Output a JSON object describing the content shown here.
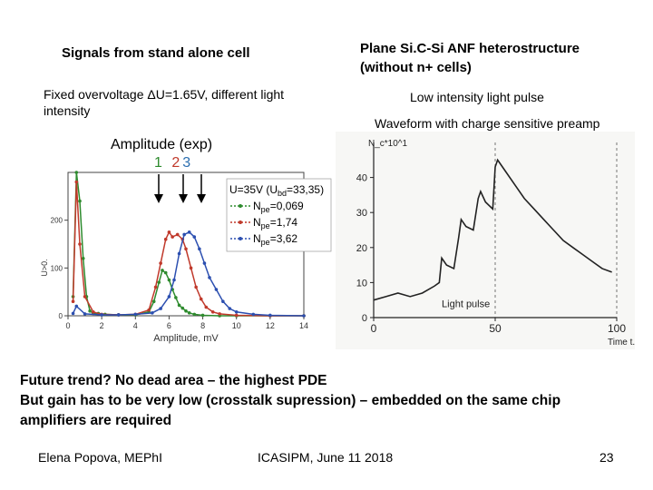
{
  "left": {
    "title": "Signals from stand alone cell",
    "condition_line1": "Fixed overvoltage ",
    "delta": "ΔU=1.65V",
    "condition_line1b": ", different light",
    "condition_line2": "intensity",
    "amplitude_label": "Amplitude (exp)",
    "markers": [
      "1",
      "2",
      "3"
    ],
    "marker_colors": [
      "#2e8b2e",
      "#c0392b",
      "#2c6fb0"
    ]
  },
  "right": {
    "title_line1": "Plane Si.C-Si ANF heterostructure",
    "title_line2": "(without n+ cells)",
    "low_intensity": "Low intensity light pulse",
    "waveform": "Waveform with charge sensitive preamp"
  },
  "chart_data": [
    {
      "type": "line",
      "title": "",
      "xlabel": "Amplitude, mV",
      "ylabel": "U>0.",
      "xlim": [
        0,
        14
      ],
      "ylim": [
        0,
        300
      ],
      "x_ticks": [
        "0",
        "2",
        "4",
        "6",
        "8",
        "10",
        "12",
        "14"
      ],
      "y_ticks": [
        "0",
        "100",
        "200"
      ],
      "legend_title": "U=35V (Ubd=33,35)",
      "legend_title_main": "U=35V (U",
      "legend_title_sub": "bd",
      "legend_title_end": "=33,35)",
      "series": [
        {
          "name": "Npe=0,069",
          "label_main": "N",
          "label_sub": "pe",
          "label_val": "=0,069",
          "color": "#2e8b2e",
          "x": [
            0.3,
            0.5,
            0.7,
            0.9,
            1.1,
            1.3,
            1.5,
            1.8,
            2.2,
            3,
            4,
            4.8,
            5.1,
            5.4,
            5.6,
            5.8,
            6.0,
            6.2,
            6.4,
            6.6,
            6.8,
            7.0,
            7.2,
            7.5,
            8,
            9,
            10,
            12,
            14
          ],
          "values": [
            40,
            300,
            240,
            120,
            40,
            10,
            5,
            5,
            3,
            2,
            2,
            8,
            30,
            70,
            95,
            90,
            75,
            55,
            38,
            22,
            16,
            10,
            6,
            3,
            1,
            0,
            0,
            0,
            0
          ]
        },
        {
          "name": "Npe=1,74",
          "label_main": "N",
          "label_sub": "pe",
          "label_val": "=1,74",
          "color": "#c0392b",
          "x": [
            0.3,
            0.5,
            0.7,
            1.0,
            1.5,
            2,
            3,
            4,
            4.8,
            5.2,
            5.5,
            5.8,
            6.0,
            6.2,
            6.5,
            6.8,
            7.0,
            7.3,
            7.6,
            7.9,
            8.2,
            8.6,
            9,
            10,
            12,
            14
          ],
          "values": [
            30,
            280,
            150,
            40,
            8,
            3,
            2,
            3,
            12,
            60,
            110,
            160,
            175,
            165,
            170,
            160,
            140,
            100,
            60,
            35,
            18,
            8,
            4,
            1,
            0,
            0
          ]
        },
        {
          "name": "Npe=3,62",
          "label_main": "N",
          "label_sub": "pe",
          "label_val": "=3,62",
          "color": "#2c4fb0",
          "x": [
            0.3,
            0.5,
            1,
            2,
            3,
            4,
            5,
            5.5,
            6,
            6.3,
            6.6,
            6.9,
            7.2,
            7.5,
            7.8,
            8.1,
            8.4,
            8.8,
            9.2,
            9.6,
            10,
            11,
            12,
            14
          ],
          "values": [
            5,
            20,
            4,
            2,
            2,
            3,
            6,
            15,
            40,
            75,
            130,
            170,
            175,
            165,
            140,
            110,
            80,
            55,
            30,
            15,
            8,
            3,
            1,
            0
          ]
        }
      ]
    },
    {
      "type": "line",
      "title": "",
      "ylabel": "N_c*10^1",
      "xlabel": "Time t.",
      "xlim": [
        0,
        100
      ],
      "ylim": [
        0,
        50
      ],
      "x_ticks": [
        "0",
        "50",
        "100"
      ],
      "y_ticks": [
        "0",
        "10",
        "20",
        "30",
        "40"
      ],
      "annotation": "Light pulse",
      "series": [
        {
          "name": "waveform",
          "color": "#222222",
          "x": [
            0,
            5,
            10,
            15,
            20,
            25,
            27,
            28,
            30,
            33,
            35,
            36,
            38,
            41,
            43,
            44,
            46,
            49,
            50,
            51,
            54,
            58,
            62,
            66,
            70,
            74,
            78,
            82,
            86,
            90,
            94,
            98
          ],
          "values": [
            5,
            6,
            7,
            6,
            7,
            9,
            10,
            17,
            15,
            14,
            23,
            28,
            26,
            25,
            34,
            36,
            33,
            31,
            43,
            45,
            42,
            38,
            34,
            31,
            28,
            25,
            22,
            20,
            18,
            16,
            14,
            13
          ]
        }
      ]
    }
  ],
  "bottom": {
    "line1": "Future trend? No dead area – the highest PDE",
    "line2": "But gain has to be very low (crosstalk supression) – embedded on the same chip",
    "line3": "amplifiers are required"
  },
  "footer": {
    "author": "Elena Popova, MEPhI",
    "conference": "ICASIPM, June 11 2018",
    "page": "23"
  }
}
